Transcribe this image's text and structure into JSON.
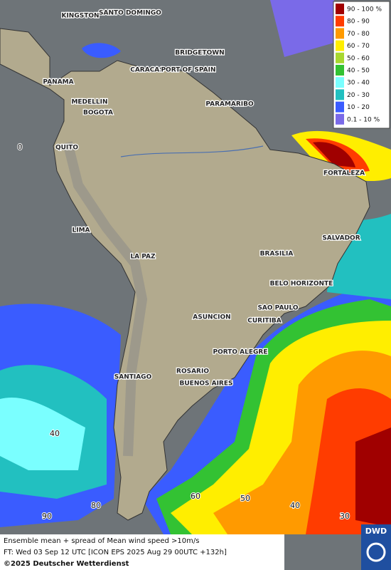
{
  "cities": [
    "KINGSTON",
    "SANTO DOMINGO",
    "BRIDGETOWN",
    "CARACAS",
    "PORT OF SPAIN",
    "PANAMA",
    "MEDELLIN",
    "BOGOTA",
    "PARAMARIBO",
    "QUITO",
    "FORTALEZA",
    "LIMA",
    "SALVADOR",
    "LA PAZ",
    "BRASILIA",
    "BELO HORIZONTE",
    "SAO PAULO",
    "ASUNCION",
    "CURITIBA",
    "PORTO ALEGRE",
    "SANTIAGO",
    "ROSARIO",
    "BUENOS AIRES"
  ],
  "grid_labels": [
    "0",
    "40",
    "90",
    "80",
    "60",
    "50",
    "40",
    "30"
  ],
  "legend": {
    "items": [
      {
        "label": "90 - 100 %",
        "color": "#a00000"
      },
      {
        "label": "80 - 90",
        "color": "#ff3c00"
      },
      {
        "label": "70 - 80",
        "color": "#ff9a00"
      },
      {
        "label": "60 - 70",
        "color": "#ffee00"
      },
      {
        "label": "50 - 60",
        "color": "#a8d830"
      },
      {
        "label": "40 - 50",
        "color": "#33c233"
      },
      {
        "label": "30 - 40",
        "color": "#7affff"
      },
      {
        "label": "20 - 30",
        "color": "#22c0c0"
      },
      {
        "label": "10 - 20",
        "color": "#3a5cff"
      },
      {
        "label": "0.1 - 10 %",
        "color": "#7a6ae8"
      }
    ]
  },
  "footer": {
    "line1": "Ensemble mean + spread of Mean wind speed >10m/s",
    "line2": "FT: Wed 03 Sep 12 UTC [ICON EPS 2025 Aug 29 00UTC +132h]",
    "line3": "©2025 Deutscher Wetterdienst"
  },
  "logo": "DWD"
}
